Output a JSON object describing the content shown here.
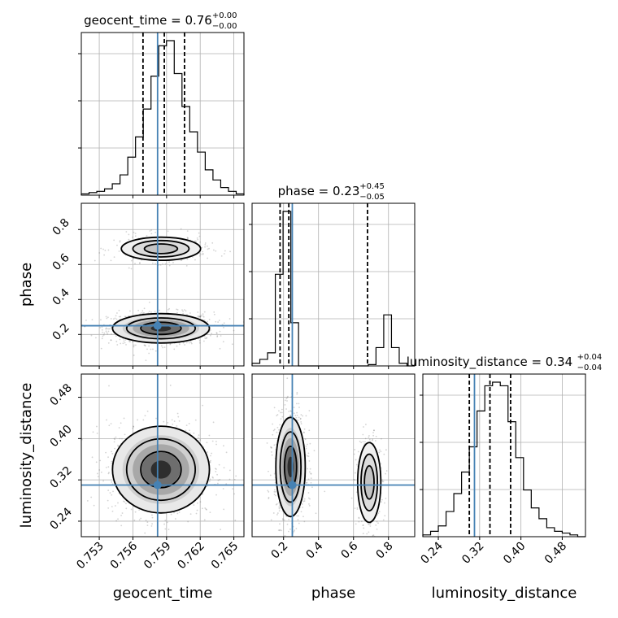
{
  "chart_data": {
    "type": "corner",
    "parameters": [
      "geocent_time",
      "phase",
      "luminosity_distance"
    ],
    "truths": {
      "geocent_time": 0.7582,
      "phase": 0.25,
      "luminosity_distance": 0.31
    },
    "ranges": {
      "geocent_time": [
        0.7514,
        0.7659
      ],
      "phase": [
        0.02,
        0.95
      ],
      "luminosity_distance": [
        0.21,
        0.525
      ]
    },
    "ticks": {
      "geocent_time": [
        {
          "v": 0.753,
          "label": "0.753"
        },
        {
          "v": 0.756,
          "label": "0.756"
        },
        {
          "v": 0.759,
          "label": "0.759"
        },
        {
          "v": 0.762,
          "label": "0.762"
        },
        {
          "v": 0.765,
          "label": "0.765"
        }
      ],
      "phase": [
        {
          "v": 0.2,
          "label": "0.2"
        },
        {
          "v": 0.4,
          "label": "0.4"
        },
        {
          "v": 0.6,
          "label": "0.6"
        },
        {
          "v": 0.8,
          "label": "0.8"
        }
      ],
      "luminosity_distance": [
        {
          "v": 0.24,
          "label": "0.24"
        },
        {
          "v": 0.32,
          "label": "0.32"
        },
        {
          "v": 0.4,
          "label": "0.40"
        },
        {
          "v": 0.48,
          "label": "0.48"
        }
      ]
    },
    "titles": [
      {
        "name": "geocent_time = 0.76",
        "sup": "+0.00",
        "sub": "−0.00"
      },
      {
        "name": "phase = 0.23",
        "sup": "+0.45",
        "sub": "−0.05"
      },
      {
        "name": "luminosity_distance = 0.34",
        "sup": "+0.04",
        "sub": "−0.04"
      }
    ],
    "histograms": {
      "geocent_time": {
        "counts": [
          1,
          2,
          3,
          5,
          9,
          16,
          30,
          46,
          68,
          94,
          118,
          122,
          96,
          70,
          50,
          34,
          20,
          12,
          6,
          3,
          1
        ],
        "quantiles": [
          0.7569,
          0.7588,
          0.7606
        ]
      },
      "phase": {
        "counts": [
          2,
          5,
          10,
          70,
          118,
          33,
          0,
          0,
          0,
          0,
          0,
          0,
          0,
          0,
          0,
          1,
          14,
          39,
          14,
          2,
          0
        ],
        "quantiles": [
          0.18,
          0.23,
          0.68
        ]
      },
      "luminosity_distance": {
        "counts": [
          1,
          3,
          6,
          14,
          24,
          36,
          50,
          70,
          84,
          86,
          84,
          64,
          44,
          26,
          16,
          10,
          5,
          3,
          2,
          1,
          0
        ],
        "quantiles": [
          0.3,
          0.34,
          0.38
        ]
      }
    },
    "axis_labels": {
      "geocent_time": "geocent_time",
      "phase": "phase",
      "luminosity_distance": "luminosity_distance"
    },
    "grid": true,
    "colors": {
      "truth": "#4682b4",
      "line": "#000000",
      "grid": "#b0b0b0",
      "quantile": "#000000"
    }
  }
}
